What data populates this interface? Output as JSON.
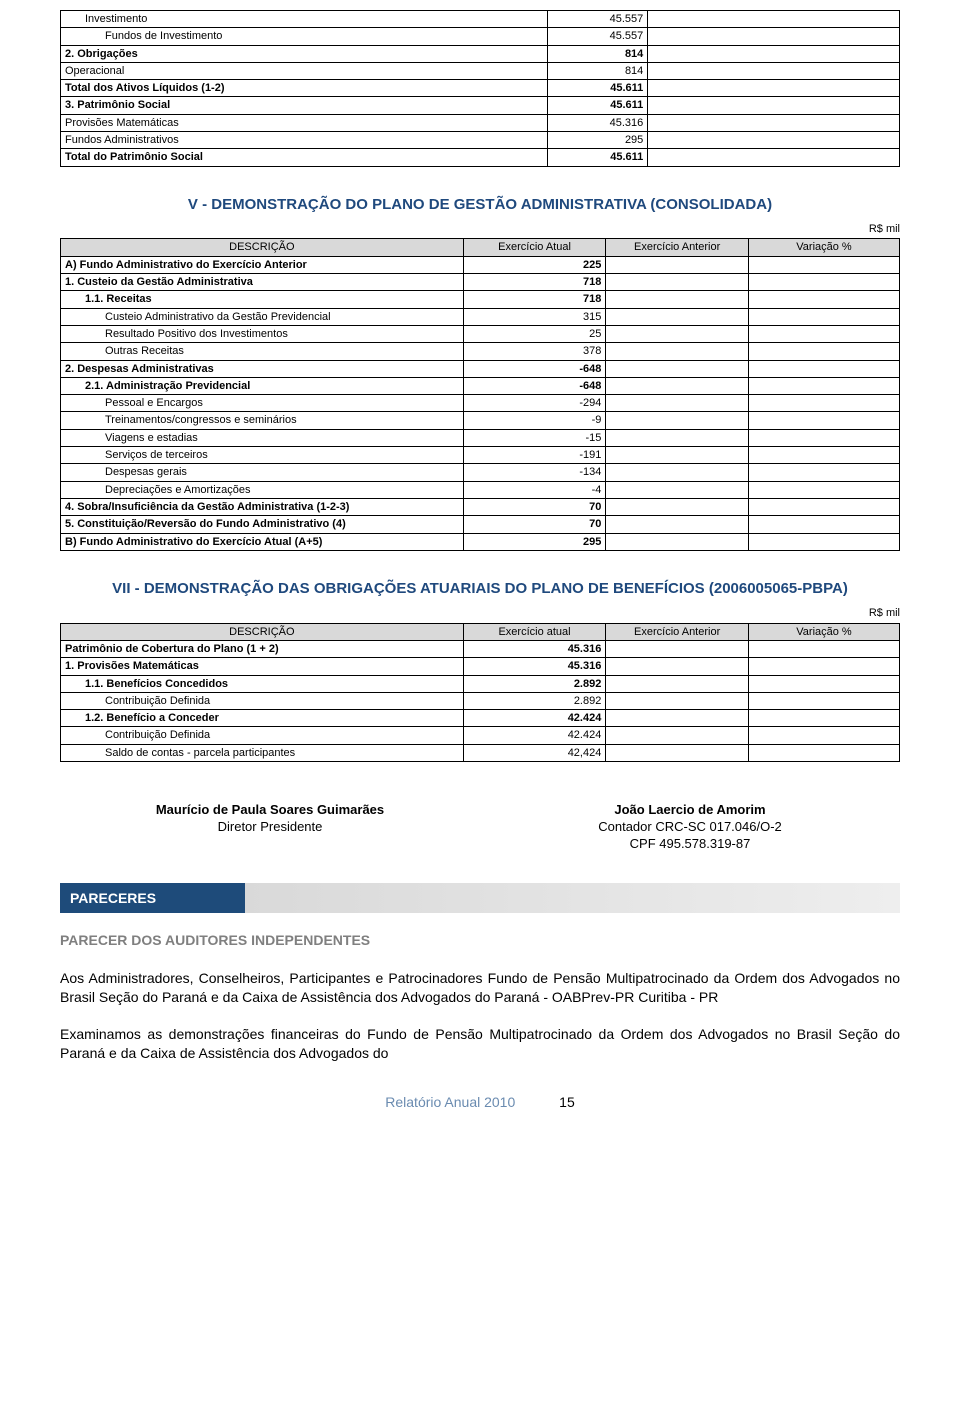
{
  "colors": {
    "heading": "#1f497d",
    "bar_dark": "#1e4b7a",
    "bar_light": "#d9d9d9",
    "grey_heading": "#7f7f7f",
    "footer": "#6a8bb0",
    "grey_bg": "#d9d9d9"
  },
  "table1": {
    "rows": [
      {
        "label": "Investimento",
        "val": "45.557",
        "bold": false,
        "indent": 1
      },
      {
        "label": "Fundos de Investimento",
        "val": "45.557",
        "bold": false,
        "indent": 2
      },
      {
        "label": "2. Obrigações",
        "val": "814",
        "bold": true,
        "indent": 0
      },
      {
        "label": "Operacional",
        "val": "814",
        "bold": false,
        "indent": 0
      },
      {
        "label": "Total dos Ativos Líquidos (1-2)",
        "val": "45.611",
        "bold": true,
        "indent": 0
      },
      {
        "label": "3. Patrimônio Social",
        "val": "45.611",
        "bold": true,
        "indent": 0
      },
      {
        "label": "Provisões Matemáticas",
        "val": "45.316",
        "bold": false,
        "indent": 0
      },
      {
        "label": "Fundos Administrativos",
        "val": "295",
        "bold": false,
        "indent": 0
      },
      {
        "label": "Total do Patrimônio Social",
        "val": "45.611",
        "bold": true,
        "indent": 0
      }
    ]
  },
  "section_v_title": "V - DEMONSTRAÇÃO DO PLANO DE GESTÃO ADMINISTRATIVA (CONSOLIDADA)",
  "rs_mil": "R$ mil",
  "table2": {
    "headers": {
      "c1": "DESCRIÇÃO",
      "c2": "Exercício Atual",
      "c3": "Exercício Anterior",
      "c4": "Variação %"
    },
    "rows": [
      {
        "label": "A) Fundo Administrativo do Exercício Anterior",
        "val": "225",
        "bold": true,
        "indent": 0
      },
      {
        "label": "1. Custeio da Gestão Administrativa",
        "val": "718",
        "bold": true,
        "indent": 0
      },
      {
        "label": "1.1. Receitas",
        "val": "718",
        "bold": true,
        "indent": 1
      },
      {
        "label": "Custeio Administrativo da Gestão Previdencial",
        "val": "315",
        "bold": false,
        "indent": 2
      },
      {
        "label": "Resultado Positivo dos Investimentos",
        "val": "25",
        "bold": false,
        "indent": 2
      },
      {
        "label": "Outras Receitas",
        "val": "378",
        "bold": false,
        "indent": 2
      },
      {
        "label": "2. Despesas Administrativas",
        "val": "-648",
        "bold": true,
        "indent": 0
      },
      {
        "label": "2.1. Administração Previdencial",
        "val": "-648",
        "bold": true,
        "indent": 1
      },
      {
        "label": "Pessoal e Encargos",
        "val": "-294",
        "bold": false,
        "indent": 2
      },
      {
        "label": "Treinamentos/congressos e seminários",
        "val": "-9",
        "bold": false,
        "indent": 2
      },
      {
        "label": "Viagens e estadias",
        "val": "-15",
        "bold": false,
        "indent": 2
      },
      {
        "label": "Serviços de terceiros",
        "val": "-191",
        "bold": false,
        "indent": 2
      },
      {
        "label": "Despesas gerais",
        "val": "-134",
        "bold": false,
        "indent": 2
      },
      {
        "label": "Depreciações e Amortizações",
        "val": "-4",
        "bold": false,
        "indent": 2
      },
      {
        "label": "4. Sobra/Insuficiência da Gestão Administrativa (1-2-3)",
        "val": "70",
        "bold": true,
        "indent": 0
      },
      {
        "label": "5. Constituição/Reversão do Fundo Administrativo (4)",
        "val": "70",
        "bold": true,
        "indent": 0
      },
      {
        "label": "B)  Fundo Administrativo do Exercício Atual (A+5)",
        "val": "295",
        "bold": true,
        "indent": 0
      }
    ]
  },
  "section_vii_title": "VII - DEMONSTRAÇÃO DAS OBRIGAÇÕES ATUARIAIS DO PLANO DE BENEFÍCIOS (2006005065-PBPA)",
  "table3": {
    "headers": {
      "c1": "DESCRIÇÃO",
      "c2": "Exercício atual",
      "c3": "Exercício Anterior",
      "c4": "Variação %"
    },
    "rows": [
      {
        "label": "Patrimônio de Cobertura do Plano (1 + 2)",
        "val": "45.316",
        "bold": true,
        "indent": 0
      },
      {
        "label": "1. Provisões Matemáticas",
        "val": "45.316",
        "bold": true,
        "indent": 0
      },
      {
        "label": "1.1. Benefícios Concedidos",
        "val": "2.892",
        "bold": true,
        "indent": 1
      },
      {
        "label": "Contribuição Definida",
        "val": "2.892",
        "bold": false,
        "indent": 2
      },
      {
        "label": "1.2. Benefício a Conceder",
        "val": "42.424",
        "bold": true,
        "indent": 1
      },
      {
        "label": "Contribuição Definida",
        "val": "42.424",
        "bold": false,
        "indent": 2
      },
      {
        "label": "Saldo de contas - parcela participantes",
        "val": "42,424",
        "bold": false,
        "indent": 2
      }
    ]
  },
  "signatures": {
    "left_name": "Maurício de Paula Soares Guimarães",
    "left_title": "Diretor Presidente",
    "right_name": "João Laercio de Amorim",
    "right_line1": "Contador CRC-SC 017.046/O-2",
    "right_line2": "CPF 495.578.319-87"
  },
  "pareceres_label": "PARECERES",
  "sub_heading": "PARECER DOS AUDITORES INDEPENDENTES",
  "para1": "Aos Administradores, Conselheiros, Participantes e Patrocinadores Fundo de Pensão Multipatrocinado da Ordem dos Advogados no Brasil Seção do Paraná e da Caixa de Assistência dos Advogados do Paraná - OABPrev-PR Curitiba - PR",
  "para2": "Examinamos as demonstrações financeiras do Fundo de Pensão Multipatrocinado da Ordem dos Advogados no Brasil Seção do Paraná e da Caixa de Assistência dos Advogados do",
  "footer_text": "Relatório Anual 2010",
  "footer_page": "15"
}
